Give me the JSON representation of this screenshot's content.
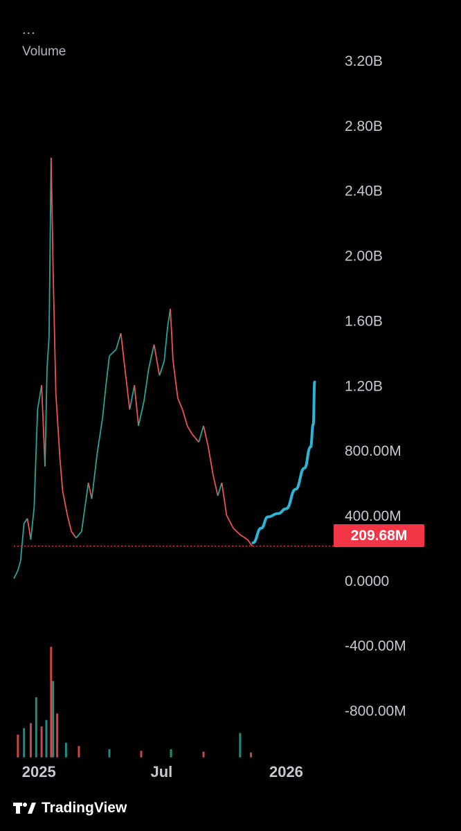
{
  "header": {
    "menu_icon": "...",
    "indicator_title": "Volume"
  },
  "branding": {
    "logo": "tradingview-logo-icon",
    "name": "TradingView"
  },
  "price_label": {
    "value": "209.68M",
    "color": "#f23645"
  },
  "colors": {
    "background": "#000000",
    "up": "#26a69a",
    "down": "#ef5350",
    "projection": "#29b6d8",
    "price_line": "#f23645",
    "text": "#c7c9d1"
  },
  "chart_data": {
    "type": "line",
    "title": "",
    "xlabel": "",
    "ylabel": "",
    "y_ticks": [
      "3.20B",
      "2.80B",
      "2.40B",
      "2.00B",
      "1.60B",
      "1.20B",
      "800.00M",
      "400.00M",
      "0.0000",
      "-400.00M",
      "-800.00M"
    ],
    "y_tick_values": [
      3200000000,
      2800000000,
      2400000000,
      2000000000,
      1600000000,
      1200000000,
      800000000,
      400000000,
      0,
      -400000000,
      -800000000
    ],
    "x_ticks": [
      "2025",
      "Jul",
      "2026"
    ],
    "x_tick_dates": [
      "2025-01-01",
      "2025-07-01",
      "2026-01-01"
    ],
    "ylim": [
      -1100000000,
      3400000000
    ],
    "xlim": [
      "2024-11-25",
      "2026-03-10"
    ],
    "current_value": 209680000,
    "grid": false,
    "series": [
      {
        "kind": "volume-line",
        "points": [
          [
            "2024-11-25",
            10000000
          ],
          [
            "2024-12-01",
            60000000
          ],
          [
            "2024-12-05",
            120000000
          ],
          [
            "2024-12-10",
            350000000
          ],
          [
            "2024-12-15",
            380000000
          ],
          [
            "2024-12-20",
            250000000
          ],
          [
            "2024-12-25",
            450000000
          ],
          [
            "2024-12-30",
            1050000000
          ],
          [
            "2025-01-05",
            1200000000
          ],
          [
            "2025-01-10",
            700000000
          ],
          [
            "2025-01-13",
            1300000000
          ],
          [
            "2025-01-16",
            1500000000
          ],
          [
            "2025-01-19",
            2600000000
          ],
          [
            "2025-01-22",
            1900000000
          ],
          [
            "2025-01-26",
            1150000000
          ],
          [
            "2025-02-01",
            750000000
          ],
          [
            "2025-02-05",
            550000000
          ],
          [
            "2025-02-12",
            400000000
          ],
          [
            "2025-02-18",
            300000000
          ],
          [
            "2025-02-25",
            260000000
          ],
          [
            "2025-03-05",
            300000000
          ],
          [
            "2025-03-10",
            450000000
          ],
          [
            "2025-03-15",
            600000000
          ],
          [
            "2025-03-20",
            500000000
          ],
          [
            "2025-03-28",
            780000000
          ],
          [
            "2025-04-05",
            1000000000
          ],
          [
            "2025-04-10",
            1200000000
          ],
          [
            "2025-04-15",
            1380000000
          ],
          [
            "2025-04-25",
            1420000000
          ],
          [
            "2025-05-02",
            1520000000
          ],
          [
            "2025-05-08",
            1300000000
          ],
          [
            "2025-05-15",
            1050000000
          ],
          [
            "2025-05-22",
            1200000000
          ],
          [
            "2025-05-28",
            950000000
          ],
          [
            "2025-06-05",
            1100000000
          ],
          [
            "2025-06-12",
            1300000000
          ],
          [
            "2025-06-20",
            1450000000
          ],
          [
            "2025-06-28",
            1260000000
          ],
          [
            "2025-07-05",
            1350000000
          ],
          [
            "2025-07-10",
            1560000000
          ],
          [
            "2025-07-14",
            1670000000
          ],
          [
            "2025-07-18",
            1350000000
          ],
          [
            "2025-07-25",
            1120000000
          ],
          [
            "2025-08-01",
            1050000000
          ],
          [
            "2025-08-08",
            950000000
          ],
          [
            "2025-08-15",
            900000000
          ],
          [
            "2025-08-25",
            850000000
          ],
          [
            "2025-09-01",
            950000000
          ],
          [
            "2025-09-08",
            820000000
          ],
          [
            "2025-09-15",
            650000000
          ],
          [
            "2025-09-22",
            520000000
          ],
          [
            "2025-09-28",
            600000000
          ],
          [
            "2025-10-05",
            400000000
          ],
          [
            "2025-10-15",
            320000000
          ],
          [
            "2025-10-25",
            280000000
          ],
          [
            "2025-11-05",
            250000000
          ],
          [
            "2025-11-12",
            209680000
          ]
        ]
      },
      {
        "kind": "projection",
        "points": [
          [
            "2025-11-13",
            230000000
          ],
          [
            "2025-11-25",
            320000000
          ],
          [
            "2025-12-05",
            390000000
          ],
          [
            "2025-12-20",
            410000000
          ],
          [
            "2026-01-01",
            440000000
          ],
          [
            "2026-01-15",
            560000000
          ],
          [
            "2026-01-28",
            690000000
          ],
          [
            "2026-02-06",
            820000000
          ],
          [
            "2026-02-10",
            960000000
          ],
          [
            "2026-02-12",
            1220000000
          ]
        ]
      }
    ],
    "volume_histogram": {
      "points": [
        [
          "2024-12-01",
          -950000000
        ],
        [
          "2024-12-10",
          -910000000
        ],
        [
          "2024-12-20",
          -880000000
        ],
        [
          "2024-12-28",
          -720000000
        ],
        [
          "2025-01-05",
          -900000000
        ],
        [
          "2025-01-12",
          -860000000
        ],
        [
          "2025-01-19",
          -410000000
        ],
        [
          "2025-01-22",
          -620000000
        ],
        [
          "2025-01-28",
          -820000000
        ],
        [
          "2025-02-10",
          -1000000000
        ],
        [
          "2025-03-01",
          -1020000000
        ],
        [
          "2025-04-15",
          -1040000000
        ],
        [
          "2025-06-01",
          -1050000000
        ],
        [
          "2025-07-15",
          -1040000000
        ],
        [
          "2025-09-01",
          -1055000000
        ],
        [
          "2025-10-25",
          -940000000
        ],
        [
          "2025-11-10",
          -1060000000
        ]
      ]
    }
  }
}
